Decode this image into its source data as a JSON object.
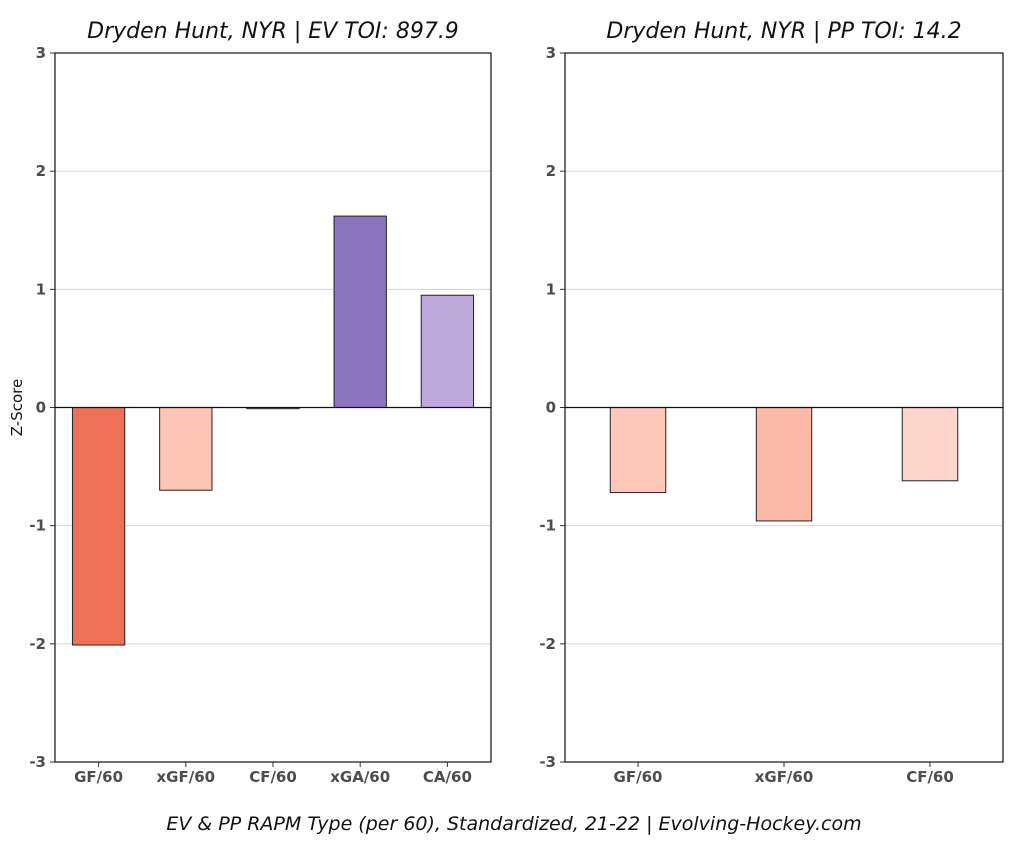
{
  "caption": "EV & PP RAPM Type (per 60), Standardized, 21-22    |    Evolving-Hockey.com",
  "chart_data": [
    {
      "type": "bar",
      "title": "Dryden Hunt, NYR  |  EV TOI: 897.9",
      "ylabel": "Z-Score",
      "ylim": [
        -3,
        3
      ],
      "yticks": [
        -3,
        -2,
        -1,
        0,
        1,
        2,
        3
      ],
      "grid": true,
      "categories": [
        "GF/60",
        "xGF/60",
        "CF/60",
        "xGA/60",
        "CA/60"
      ],
      "values": [
        -2.01,
        -0.7,
        -0.01,
        1.62,
        0.95
      ],
      "colors": [
        "#ec7156",
        "#fcc5b6",
        "#f7f7f7",
        "#8c74c0",
        "#bca9d9"
      ]
    },
    {
      "type": "bar",
      "title": "Dryden Hunt, NYR  |  PP TOI: 14.2",
      "ylabel": "",
      "ylim": [
        -3,
        3
      ],
      "yticks": [
        -3,
        -2,
        -1,
        0,
        1,
        2,
        3
      ],
      "grid": true,
      "categories": [
        "GF/60",
        "xGF/60",
        "CF/60"
      ],
      "values": [
        -0.72,
        -0.96,
        -0.62
      ],
      "colors": [
        "#fdc7ba",
        "#fbb8a6",
        "#fdd5cb"
      ]
    }
  ]
}
